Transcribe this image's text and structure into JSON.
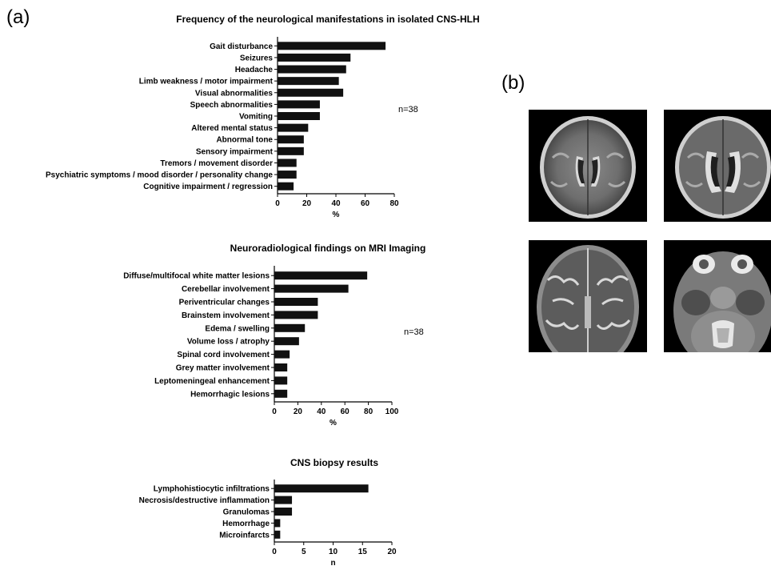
{
  "panel_labels": {
    "a": "(a)",
    "b": "(b)"
  },
  "chart_data": [
    {
      "type": "bar",
      "orientation": "horizontal",
      "title": "Frequency of the neurological manifestations in isolated CNS-HLH",
      "categories": [
        "Gait disturbance",
        "Seizures",
        "Headache",
        "Limb weakness / motor impairment",
        "Visual abnormalities",
        "Speech abnormalities",
        "Vomiting",
        "Altered mental status",
        "Abnormal tone",
        "Sensory impairment",
        "Tremors / movement disorder",
        "Psychiatric symptoms / mood disorder / personality change",
        "Cognitive impairment / regression"
      ],
      "values": [
        74,
        50,
        47,
        42,
        45,
        29,
        29,
        21,
        18,
        18,
        13,
        13,
        11
      ],
      "xlabel": "%",
      "xlim": [
        0,
        80
      ],
      "xticks": [
        0,
        20,
        40,
        60,
        80
      ],
      "annotation": "n=38"
    },
    {
      "type": "bar",
      "orientation": "horizontal",
      "title": "Neuroradiological findings on MRI Imaging",
      "categories": [
        "Diffuse/multifocal white matter lesions",
        "Cerebellar involvement",
        "Periventricular changes",
        "Brainstem involvement",
        "Edema / swelling",
        "Volume loss / atrophy",
        "Spinal cord involvement",
        "Grey matter involvement",
        "Leptomeningeal enhancement",
        "Hemorrhagic lesions"
      ],
      "values": [
        79,
        63,
        37,
        37,
        26,
        21,
        13,
        11,
        11,
        11
      ],
      "xlabel": "%",
      "xlim": [
        0,
        100
      ],
      "xticks": [
        0,
        20,
        40,
        60,
        80,
        100
      ],
      "annotation": "n=38"
    },
    {
      "type": "bar",
      "orientation": "horizontal",
      "title": "CNS biopsy results",
      "categories": [
        "Lymphohistiocytic infiltrations",
        "Necrosis/destructive inflammation",
        "Granulomas",
        "Hemorrhage",
        "Microinfarcts"
      ],
      "values": [
        16,
        3,
        3,
        1,
        1
      ],
      "xlabel": "n",
      "xlim": [
        0,
        20
      ],
      "xticks": [
        0,
        5,
        10,
        15,
        20
      ],
      "annotation": ""
    }
  ],
  "mri_images": [
    {
      "name": "axial-flair-1",
      "kind": "flair"
    },
    {
      "name": "axial-flair-2",
      "kind": "flair"
    },
    {
      "name": "axial-t2-1",
      "kind": "t2"
    },
    {
      "name": "axial-t2-posterior-fossa",
      "kind": "t2-pf"
    }
  ]
}
